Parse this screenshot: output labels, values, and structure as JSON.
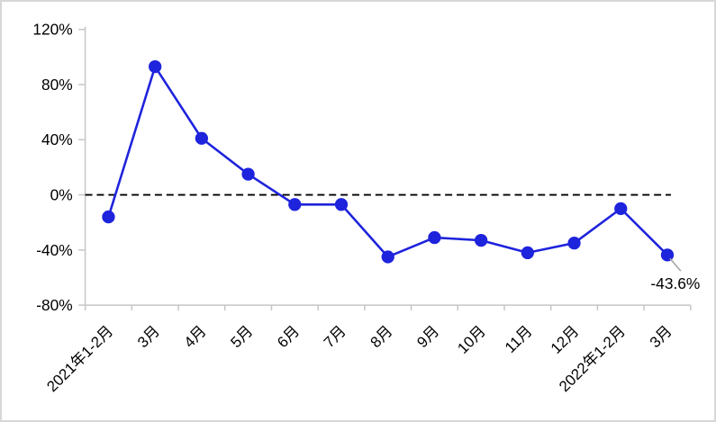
{
  "chart_data": {
    "type": "line",
    "title": "",
    "xlabel": "",
    "ylabel": "",
    "categories": [
      "2021年1-2月",
      "3月",
      "4月",
      "5月",
      "6月",
      "7月",
      "8月",
      "9月",
      "10月",
      "11月",
      "12月",
      "2022年1-2月",
      "3月"
    ],
    "values": [
      -16,
      93,
      41,
      15,
      -7,
      -7,
      -45,
      -31,
      -33,
      -42,
      -35,
      -10,
      -43.6
    ],
    "ylim": [
      -80,
      120
    ],
    "yticks": [
      120,
      80,
      40,
      0,
      -40,
      -80
    ],
    "ytick_labels": [
      "120%",
      "80%",
      "40%",
      "0%",
      "-40%",
      "-80%"
    ],
    "x_label_rotation_deg": -45,
    "grid": false,
    "legend": "none",
    "zero_line": {
      "present": true,
      "style": "dashed",
      "value": 0
    },
    "annotation": {
      "text": "-43.6%",
      "point_index": 12
    },
    "colors": {
      "line": "#1e23dc",
      "marker": "#1e23dc",
      "zero_line": "#000000",
      "axis": "#c6c6c6",
      "text": "#000000",
      "leader_line": "#a8a8a8",
      "background": "#ffffff",
      "border": "#d7d7d7"
    }
  }
}
